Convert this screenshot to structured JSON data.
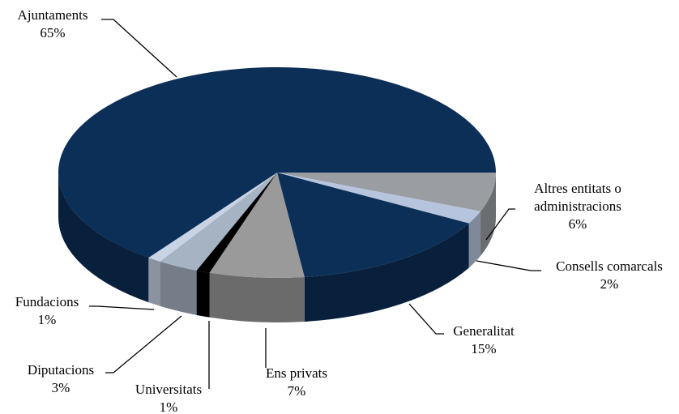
{
  "chart_data": {
    "type": "pie3d",
    "categories": [
      "Altres entitats o administracions",
      "Consells comarcals",
      "Generalitat",
      "Ens privats",
      "Universitats",
      "Diputacions",
      "Fundacions",
      "Ajuntaments"
    ],
    "values": [
      6,
      2,
      15,
      7,
      1,
      3,
      1,
      65
    ],
    "value_labels": [
      "6%",
      "2%",
      "15%",
      "7%",
      "1%",
      "3%",
      "1%",
      "65%"
    ],
    "colors": [
      "#9a9ea3",
      "#b6c5dd",
      "#0c2f57",
      "#9a9a9a",
      "#000000",
      "#a6b3c3",
      "#c9d3e6",
      "#0c2f57"
    ]
  }
}
